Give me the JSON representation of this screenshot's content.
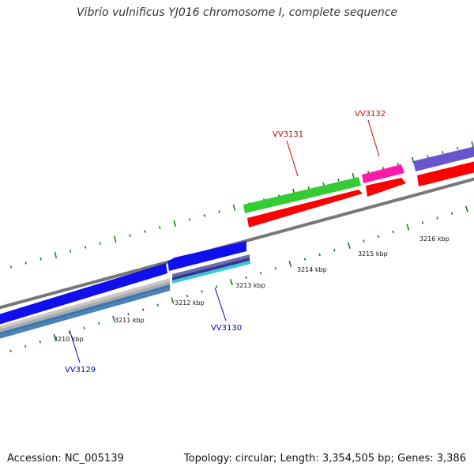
{
  "title": "Vibrio vulnificus YJ016 chromosome I, complete sequence",
  "footer": {
    "accession": "Accession: NC_005139",
    "stats": "Topology: circular; Length: 3,354,505 bp; Genes: 3,386"
  },
  "colors": {
    "backbone": "#888888",
    "ticks": "#1e7a1e",
    "label_forward": "#cc0000",
    "label_reverse": "#0000cc"
  },
  "ticks": [
    {
      "label": "3210 kbp"
    },
    {
      "label": "3211 kbp"
    },
    {
      "label": "3212 kbp"
    },
    {
      "label": "3213 kbp"
    },
    {
      "label": "3214 kbp"
    },
    {
      "label": "3215 kbp"
    },
    {
      "label": "3216 kbp"
    }
  ],
  "gene_labels": [
    {
      "text": "VV3131",
      "strand": "forward"
    },
    {
      "text": "VV3132",
      "strand": "forward"
    },
    {
      "text": "VV3130",
      "strand": "reverse"
    },
    {
      "text": "VV3129",
      "strand": "reverse"
    }
  ]
}
